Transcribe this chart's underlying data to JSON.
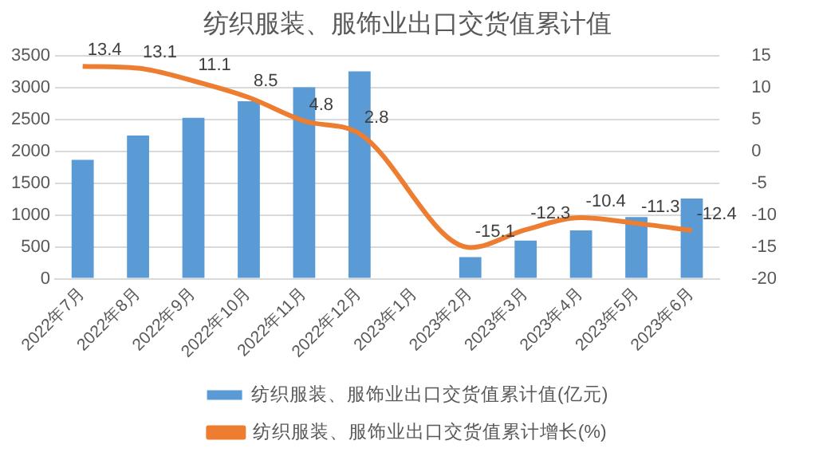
{
  "chart_data": {
    "type": "bar",
    "title": "纺织服装、服饰业出口交货值累计值",
    "categories": [
      "2022年7月",
      "2022年8月",
      "2022年9月",
      "2022年10月",
      "2022年11月",
      "2022年12月",
      "2023年1月",
      "2023年2月",
      "2023年3月",
      "2023年4月",
      "2023年5月",
      "2023年6月"
    ],
    "series": [
      {
        "name": "纺织服装、服饰业出口交货值累计值(亿元)",
        "color": "#5b9bd5",
        "values": [
          1870,
          2250,
          2530,
          2790,
          3010,
          3260,
          null,
          340,
          600,
          760,
          970,
          1260
        ]
      },
      {
        "name": "纺织服装、服饰业出口交货值累计增长(%)",
        "type": "line",
        "axis": "y2",
        "color": "#ed7d31",
        "values": [
          13.4,
          13.1,
          11.1,
          8.5,
          4.8,
          2.8,
          null,
          -15.1,
          -12.3,
          -10.4,
          -11.3,
          -12.4
        ],
        "value_labels": [
          "13.4",
          "13.1",
          "11.1",
          "8.5",
          "4.8",
          "2.8",
          null,
          "-15.1",
          "-12.3",
          "-10.4",
          "-11.3",
          "-12.4"
        ]
      }
    ],
    "ylim": [
      0,
      3500
    ],
    "yticks": [
      0,
      500,
      1000,
      1500,
      2000,
      2500,
      3000,
      3500
    ],
    "y2lim": [
      -20,
      15
    ],
    "y2ticks": [
      -20,
      -15,
      -10,
      -5,
      0,
      5,
      10,
      15
    ],
    "grid": "y",
    "legend": "bottom",
    "marker": "none",
    "line_style": "solid"
  }
}
